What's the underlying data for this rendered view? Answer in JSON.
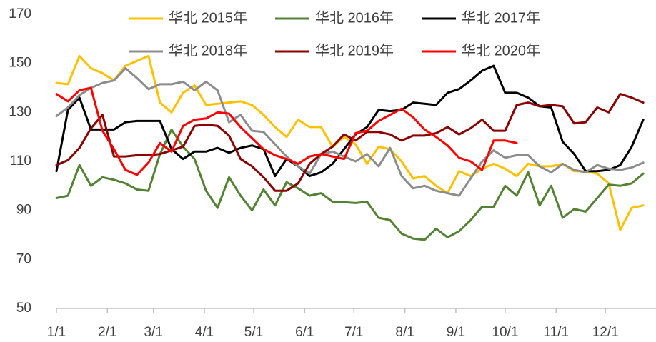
{
  "chart_data": {
    "type": "line",
    "x": [
      0,
      7,
      14,
      21,
      28,
      35,
      42,
      49,
      56,
      63,
      70,
      77,
      84,
      91,
      98,
      105,
      112,
      119,
      126,
      133,
      140,
      147,
      154,
      161,
      168,
      175,
      182,
      189,
      196,
      203,
      210,
      217,
      224,
      231,
      238,
      245,
      252,
      259,
      266,
      273,
      280,
      287,
      294,
      301,
      308,
      315,
      322,
      329,
      336,
      343,
      350,
      357
    ],
    "xlim": [
      0,
      365
    ],
    "xticks": [
      {
        "value": 0,
        "label": "1/1"
      },
      {
        "value": 31,
        "label": "2/1"
      },
      {
        "value": 59,
        "label": "3/1"
      },
      {
        "value": 90,
        "label": "4/1"
      },
      {
        "value": 120,
        "label": "5/1"
      },
      {
        "value": 151,
        "label": "6/1"
      },
      {
        "value": 181,
        "label": "7/1"
      },
      {
        "value": 212,
        "label": "8/1"
      },
      {
        "value": 243,
        "label": "9/1"
      },
      {
        "value": 273,
        "label": "10/1"
      },
      {
        "value": 304,
        "label": "11/1"
      },
      {
        "value": 334,
        "label": "12/1"
      }
    ],
    "ylim": [
      50,
      170
    ],
    "yticks": [
      50,
      70,
      90,
      110,
      130,
      150,
      170
    ],
    "grid": false,
    "legend": "top",
    "series": [
      {
        "name": "华北 2015年",
        "color": "#FFC000",
        "values": [
          142,
          141.5,
          153,
          148,
          146,
          143,
          149,
          151,
          153,
          134,
          130,
          138,
          141,
          133,
          133.5,
          134,
          134.5,
          133,
          129,
          124,
          120,
          127,
          124,
          124,
          116,
          120,
          117,
          109,
          116,
          115,
          110,
          103,
          104,
          100,
          97,
          106,
          104,
          107,
          109,
          107,
          104,
          109,
          108,
          108,
          109,
          106,
          106,
          105,
          101,
          82,
          91,
          92
        ]
      },
      {
        "name": "华北 2016年",
        "color": "#548235",
        "values": [
          95,
          96,
          108.5,
          100,
          103.5,
          102.5,
          101,
          98.5,
          98,
          113,
          123,
          116,
          111,
          98,
          91,
          103.5,
          96,
          90,
          98.5,
          92,
          101.5,
          99,
          96,
          97,
          93.5,
          93.3,
          93,
          93.5,
          87,
          86,
          80.5,
          78.5,
          78,
          82.5,
          79,
          81.5,
          86,
          91.5,
          91.5,
          100,
          96,
          105.5,
          92,
          100,
          87,
          90.5,
          89.5,
          95,
          100.5,
          100,
          101,
          105
        ]
      },
      {
        "name": "华北 2017年",
        "color": "#000000",
        "values": [
          106,
          131,
          136,
          123,
          123,
          123,
          126,
          126.5,
          126.5,
          126.5,
          115,
          111,
          114,
          114,
          115.5,
          113.5,
          115.5,
          116.5,
          115,
          104,
          111,
          108,
          104,
          105.5,
          109,
          115,
          121,
          124,
          131,
          130.5,
          131,
          134,
          133.5,
          133,
          138,
          139.5,
          143,
          147,
          149,
          138,
          138,
          136,
          132.5,
          132,
          118,
          113,
          106,
          106,
          106.5,
          108.5,
          116,
          127
        ]
      },
      {
        "name": "华北 2018年",
        "color": "#8C8C8C",
        "values": [
          128.5,
          132,
          137,
          140,
          142,
          143,
          148,
          144,
          139.5,
          141.5,
          141.5,
          142.5,
          139,
          142.5,
          139,
          126,
          129,
          122.5,
          122,
          117,
          112,
          108,
          105,
          113,
          114,
          112,
          110,
          113,
          108,
          115.5,
          104,
          99,
          100,
          98,
          97,
          96,
          103,
          110,
          114.5,
          111.5,
          112.5,
          112.5,
          108,
          105.5,
          109,
          106.5,
          105.5,
          108.5,
          107,
          106.5,
          107.5,
          109.5
        ]
      },
      {
        "name": "华北 2019年",
        "color": "#8B0000",
        "values": [
          108.5,
          110.5,
          115.5,
          123.5,
          129,
          112,
          112,
          112.5,
          112.5,
          113,
          114.5,
          116,
          124.5,
          125,
          124.5,
          120.5,
          111,
          108,
          103.5,
          98,
          98,
          101,
          109,
          113,
          116,
          121,
          118.5,
          122,
          122,
          121,
          118.5,
          120.5,
          120.5,
          121.5,
          124,
          121,
          123.5,
          127,
          122.5,
          122.5,
          133,
          134,
          132.5,
          133,
          132.5,
          125.5,
          126,
          132,
          130,
          137.5,
          136,
          134
        ]
      },
      {
        "name": "华北 2020年",
        "color": "#FF0000",
        "values": [
          137.5,
          134.5,
          139,
          140,
          122.5,
          115,
          106.5,
          104.5,
          109.5,
          117.5,
          114,
          124.5,
          127,
          127.5,
          130,
          129.5,
          124,
          119.5,
          115,
          112.5,
          111,
          109,
          112,
          113,
          112,
          111,
          121.5,
          122.5,
          126.5,
          129,
          131.5,
          128,
          123,
          120,
          116.5,
          111.5,
          110,
          106.5,
          118.5,
          118.5,
          117.5,
          null,
          null,
          null,
          null,
          null,
          null,
          null,
          null,
          null,
          null,
          null
        ]
      }
    ]
  }
}
